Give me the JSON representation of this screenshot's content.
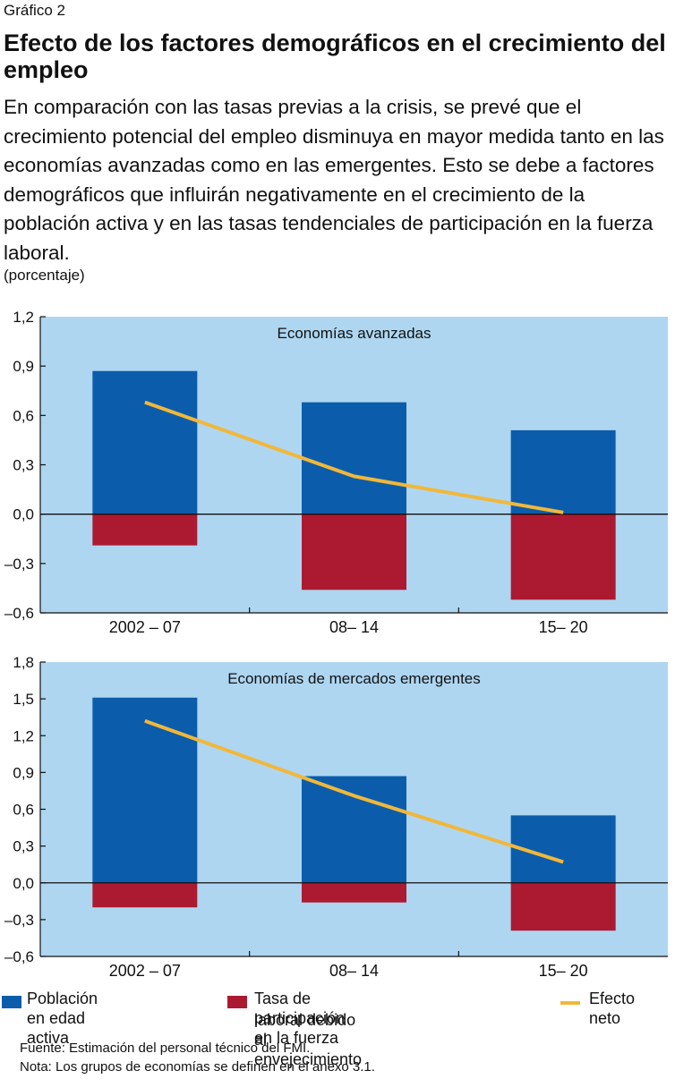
{
  "figure_label": "Gráfico 2",
  "title": "Efecto de los factores demográficos en el crecimiento del empleo",
  "subtitle": "En comparación con las tasas previas a la crisis, se prevé que el crecimiento potencial del empleo disminuya en mayor medida tanto en las economías avanzadas como en las emergentes. Esto se debe a factores demográficos que influirán negativamente en el crecimiento de la población activa y en las tasas tendenciales de participación en la fuerza laboral.",
  "units": "(porcentaje)",
  "colors": {
    "panel_background": "#aed6f1",
    "poblacion": "#0b5dab",
    "tasa": "#ac1a31",
    "efecto": "#f2b739"
  },
  "chart_data": [
    {
      "type": "bar",
      "title": "Economías avanzadas",
      "categories": [
        "2002 – 07",
        "08– 14",
        "15– 20"
      ],
      "ylim": [
        -0.6,
        1.2
      ],
      "yticks": [
        1.2,
        0.9,
        0.6,
        0.3,
        0.0,
        -0.3,
        -0.6
      ],
      "ytick_labels": [
        "1,2",
        "0,9",
        "0,6",
        "0,3",
        "0,0",
        "–0,3",
        "–0,6"
      ],
      "series": [
        {
          "name": "Población en edad activa",
          "kind": "bar",
          "values": [
            0.87,
            0.68,
            0.51
          ]
        },
        {
          "name": "Tasa de participación en la fuerza laboral debido al envejecimiento",
          "kind": "bar",
          "values": [
            -0.19,
            -0.46,
            -0.52
          ]
        },
        {
          "name": "Efecto neto",
          "kind": "line",
          "values": [
            0.68,
            0.23,
            0.01
          ]
        }
      ],
      "grid": false
    },
    {
      "type": "bar",
      "title": "Economías de mercados emergentes",
      "categories": [
        "2002 – 07",
        "08– 14",
        "15– 20"
      ],
      "ylim": [
        -0.6,
        1.8
      ],
      "yticks": [
        1.8,
        1.5,
        1.2,
        0.9,
        0.6,
        0.3,
        0.0,
        -0.3,
        -0.6
      ],
      "ytick_labels": [
        "1,8",
        "1,5",
        "1,2",
        "0,9",
        "0,6",
        "0,3",
        "0,0",
        "–0,3",
        "–0,6"
      ],
      "series": [
        {
          "name": "Población en edad activa",
          "kind": "bar",
          "values": [
            1.51,
            0.87,
            0.55
          ]
        },
        {
          "name": "Tasa de participación en la fuerza laboral debido al envejecimiento",
          "kind": "bar",
          "values": [
            -0.2,
            -0.16,
            -0.39
          ]
        },
        {
          "name": "Efecto neto",
          "kind": "line",
          "values": [
            1.32,
            0.71,
            0.17
          ]
        }
      ],
      "grid": false
    }
  ],
  "legend": {
    "poblacion": "Población en edad activa",
    "tasa_line1": "Tasa de participación en la fuerza",
    "tasa_line2": "laboral debido al envejecimiento",
    "efecto": "Efecto neto"
  },
  "source": "Fuente: Estimación del personal técnico del FMI.",
  "note": "Nota: Los grupos de economías se definen en el anexo 3.1."
}
